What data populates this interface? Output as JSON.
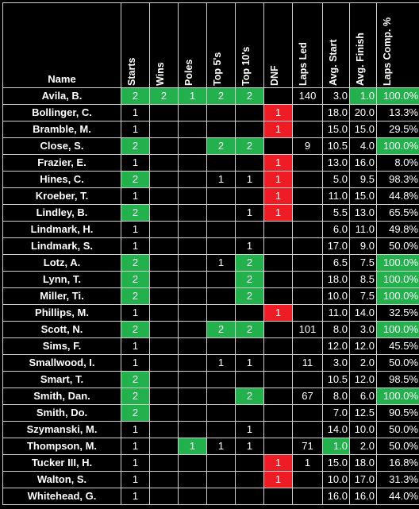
{
  "headers": {
    "name": "Name",
    "starts": "Starts",
    "wins": "Wins",
    "poles": "Poles",
    "top5": "Top 5's",
    "top10": "Top 10's",
    "dnf": "DNF",
    "laps_led": "Laps Led",
    "avg_start": "Avg. Start",
    "avg_finish": "Avg. Finish",
    "laps_comp": "Laps Comp. %"
  },
  "colors": {
    "highlight_green": "#22b14c",
    "highlight_red": "#ee1c24",
    "background": "#000000",
    "text": "#ffffff"
  },
  "rows": [
    {
      "name": "Avila, B.",
      "starts": "2",
      "wins": "2",
      "poles": "1",
      "top5": "2",
      "top10": "2",
      "dnf": "",
      "laps_led": "140",
      "avg_start": "3.0",
      "avg_finish": "1.0",
      "laps_comp": "100.0%",
      "hl": {
        "starts": "g",
        "wins": "g",
        "poles": "g",
        "top5": "g",
        "top10": "g",
        "avg_finish": "g",
        "laps_comp": "g"
      }
    },
    {
      "name": "Bollinger, C.",
      "starts": "1",
      "wins": "",
      "poles": "",
      "top5": "",
      "top10": "",
      "dnf": "1",
      "laps_led": "",
      "avg_start": "18.0",
      "avg_finish": "20.0",
      "laps_comp": "13.3%",
      "hl": {
        "dnf": "rd"
      }
    },
    {
      "name": "Bramble, M.",
      "starts": "1",
      "wins": "",
      "poles": "",
      "top5": "",
      "top10": "",
      "dnf": "1",
      "laps_led": "",
      "avg_start": "15.0",
      "avg_finish": "15.0",
      "laps_comp": "29.5%",
      "hl": {
        "dnf": "rd"
      }
    },
    {
      "name": "Close, S.",
      "starts": "2",
      "wins": "",
      "poles": "",
      "top5": "2",
      "top10": "2",
      "dnf": "",
      "laps_led": "9",
      "avg_start": "10.5",
      "avg_finish": "4.0",
      "laps_comp": "100.0%",
      "hl": {
        "starts": "g",
        "top5": "g",
        "top10": "g",
        "laps_comp": "g"
      }
    },
    {
      "name": "Frazier, E.",
      "starts": "1",
      "wins": "",
      "poles": "",
      "top5": "",
      "top10": "",
      "dnf": "1",
      "laps_led": "",
      "avg_start": "13.0",
      "avg_finish": "16.0",
      "laps_comp": "8.0%",
      "hl": {
        "dnf": "rd"
      }
    },
    {
      "name": "Hines, C.",
      "starts": "2",
      "wins": "",
      "poles": "",
      "top5": "1",
      "top10": "1",
      "dnf": "1",
      "laps_led": "",
      "avg_start": "5.0",
      "avg_finish": "9.5",
      "laps_comp": "98.3%",
      "hl": {
        "starts": "g",
        "dnf": "rd"
      }
    },
    {
      "name": "Kroeber, T.",
      "starts": "1",
      "wins": "",
      "poles": "",
      "top5": "",
      "top10": "",
      "dnf": "1",
      "laps_led": "",
      "avg_start": "11.0",
      "avg_finish": "15.0",
      "laps_comp": "44.8%",
      "hl": {
        "dnf": "rd"
      }
    },
    {
      "name": "Lindley, B.",
      "starts": "2",
      "wins": "",
      "poles": "",
      "top5": "",
      "top10": "1",
      "dnf": "1",
      "laps_led": "",
      "avg_start": "5.5",
      "avg_finish": "13.0",
      "laps_comp": "65.5%",
      "hl": {
        "starts": "g",
        "dnf": "rd"
      }
    },
    {
      "name": "Lindmark, H.",
      "starts": "1",
      "wins": "",
      "poles": "",
      "top5": "",
      "top10": "",
      "dnf": "",
      "laps_led": "",
      "avg_start": "6.0",
      "avg_finish": "11.0",
      "laps_comp": "49.8%",
      "hl": {}
    },
    {
      "name": "Lindmark, S.",
      "starts": "1",
      "wins": "",
      "poles": "",
      "top5": "",
      "top10": "1",
      "dnf": "",
      "laps_led": "",
      "avg_start": "17.0",
      "avg_finish": "9.0",
      "laps_comp": "50.0%",
      "hl": {}
    },
    {
      "name": "Lotz, A.",
      "starts": "2",
      "wins": "",
      "poles": "",
      "top5": "1",
      "top10": "2",
      "dnf": "",
      "laps_led": "",
      "avg_start": "6.5",
      "avg_finish": "7.5",
      "laps_comp": "100.0%",
      "hl": {
        "starts": "g",
        "top10": "g",
        "laps_comp": "g"
      }
    },
    {
      "name": "Lynn, T.",
      "starts": "2",
      "wins": "",
      "poles": "",
      "top5": "",
      "top10": "2",
      "dnf": "",
      "laps_led": "",
      "avg_start": "18.0",
      "avg_finish": "8.5",
      "laps_comp": "100.0%",
      "hl": {
        "starts": "g",
        "top10": "g",
        "laps_comp": "g"
      }
    },
    {
      "name": "Miller, Ti.",
      "starts": "2",
      "wins": "",
      "poles": "",
      "top5": "",
      "top10": "2",
      "dnf": "",
      "laps_led": "",
      "avg_start": "10.0",
      "avg_finish": "7.5",
      "laps_comp": "100.0%",
      "hl": {
        "starts": "g",
        "top10": "g",
        "laps_comp": "g"
      }
    },
    {
      "name": "Phillips, M.",
      "starts": "1",
      "wins": "",
      "poles": "",
      "top5": "",
      "top10": "",
      "dnf": "1",
      "laps_led": "",
      "avg_start": "11.0",
      "avg_finish": "14.0",
      "laps_comp": "32.5%",
      "hl": {
        "dnf": "rd"
      }
    },
    {
      "name": "Scott, N.",
      "starts": "2",
      "wins": "",
      "poles": "",
      "top5": "2",
      "top10": "2",
      "dnf": "",
      "laps_led": "101",
      "avg_start": "8.0",
      "avg_finish": "3.0",
      "laps_comp": "100.0%",
      "hl": {
        "starts": "g",
        "top5": "g",
        "top10": "g",
        "laps_comp": "g"
      }
    },
    {
      "name": "Sims, F.",
      "starts": "1",
      "wins": "",
      "poles": "",
      "top5": "",
      "top10": "",
      "dnf": "",
      "laps_led": "",
      "avg_start": "12.0",
      "avg_finish": "12.0",
      "laps_comp": "45.5%",
      "hl": {}
    },
    {
      "name": "Smallwood, I.",
      "starts": "1",
      "wins": "",
      "poles": "",
      "top5": "1",
      "top10": "1",
      "dnf": "",
      "laps_led": "11",
      "avg_start": "3.0",
      "avg_finish": "2.0",
      "laps_comp": "50.0%",
      "hl": {}
    },
    {
      "name": "Smart, T.",
      "starts": "2",
      "wins": "",
      "poles": "",
      "top5": "",
      "top10": "",
      "dnf": "",
      "laps_led": "",
      "avg_start": "10.5",
      "avg_finish": "12.0",
      "laps_comp": "98.5%",
      "hl": {
        "starts": "g"
      }
    },
    {
      "name": "Smith, Dan.",
      "starts": "2",
      "wins": "",
      "poles": "",
      "top5": "",
      "top10": "2",
      "dnf": "",
      "laps_led": "67",
      "avg_start": "8.0",
      "avg_finish": "6.0",
      "laps_comp": "100.0%",
      "hl": {
        "starts": "g",
        "top10": "g",
        "laps_comp": "g"
      }
    },
    {
      "name": "Smith, Do.",
      "starts": "2",
      "wins": "",
      "poles": "",
      "top5": "",
      "top10": "",
      "dnf": "",
      "laps_led": "",
      "avg_start": "7.0",
      "avg_finish": "12.5",
      "laps_comp": "90.5%",
      "hl": {
        "starts": "g"
      }
    },
    {
      "name": "Szymanski, M.",
      "starts": "1",
      "wins": "",
      "poles": "",
      "top5": "",
      "top10": "1",
      "dnf": "",
      "laps_led": "",
      "avg_start": "14.0",
      "avg_finish": "10.0",
      "laps_comp": "50.0%",
      "hl": {}
    },
    {
      "name": "Thompson, M.",
      "starts": "1",
      "wins": "",
      "poles": "1",
      "top5": "1",
      "top10": "1",
      "dnf": "",
      "laps_led": "71",
      "avg_start": "1.0",
      "avg_finish": "2.0",
      "laps_comp": "50.0%",
      "hl": {
        "poles": "g",
        "avg_start": "g"
      }
    },
    {
      "name": "Tucker III, H.",
      "starts": "1",
      "wins": "",
      "poles": "",
      "top5": "",
      "top10": "",
      "dnf": "1",
      "laps_led": "1",
      "avg_start": "15.0",
      "avg_finish": "18.0",
      "laps_comp": "16.8%",
      "hl": {
        "dnf": "rd"
      }
    },
    {
      "name": "Walton, S.",
      "starts": "1",
      "wins": "",
      "poles": "",
      "top5": "",
      "top10": "",
      "dnf": "1",
      "laps_led": "",
      "avg_start": "10.0",
      "avg_finish": "17.0",
      "laps_comp": "31.3%",
      "hl": {
        "dnf": "rd"
      }
    },
    {
      "name": "Whitehead, G.",
      "starts": "1",
      "wins": "",
      "poles": "",
      "top5": "",
      "top10": "",
      "dnf": "",
      "laps_led": "",
      "avg_start": "16.0",
      "avg_finish": "16.0",
      "laps_comp": "44.0%",
      "hl": {}
    }
  ]
}
